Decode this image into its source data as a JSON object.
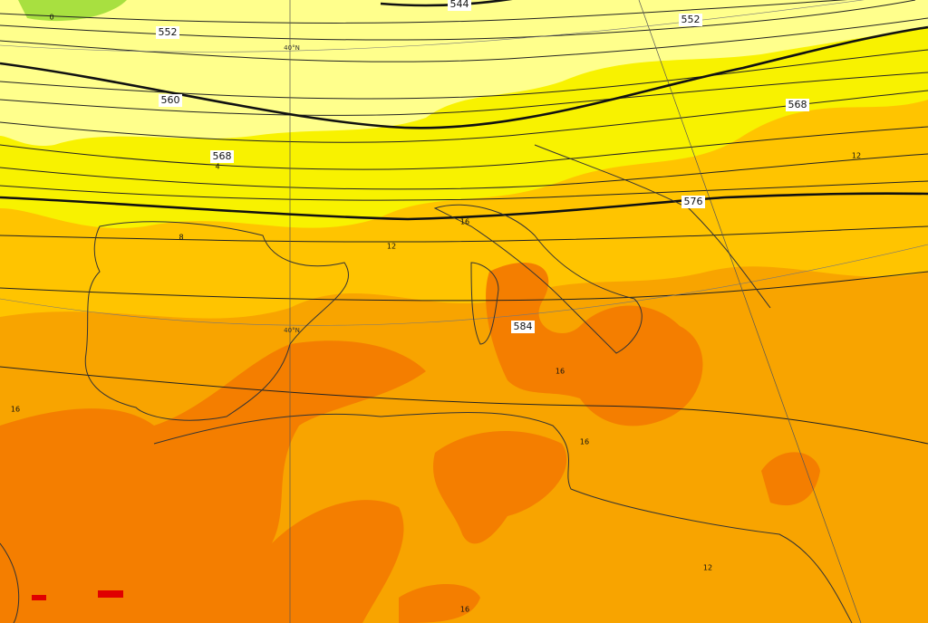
{
  "map": {
    "geopotential_labels": [
      "544",
      "552",
      "552",
      "560",
      "568",
      "568",
      "576",
      "584"
    ],
    "temperature_labels": [
      "0",
      "4",
      "8",
      "12",
      "16",
      "12",
      "16",
      "16",
      "16",
      "12",
      "16"
    ],
    "latitude_labels": [
      "40°N",
      "40°N"
    ]
  }
}
